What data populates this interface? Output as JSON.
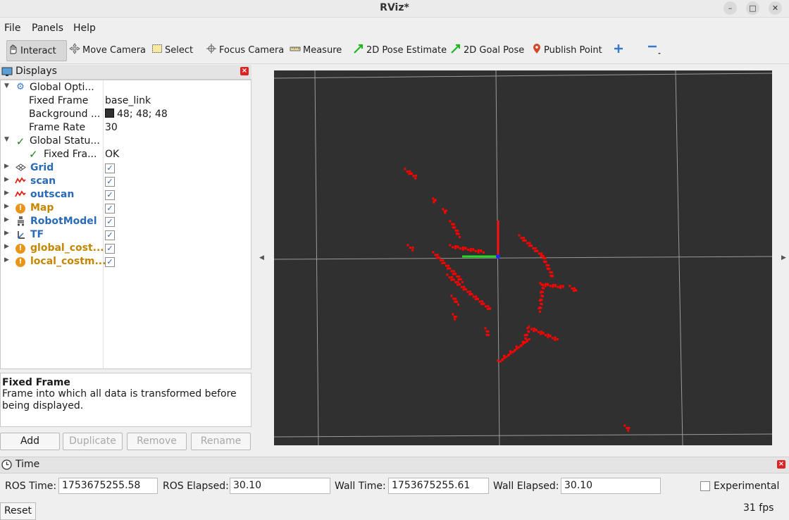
{
  "window": {
    "title": "RViz*"
  },
  "menu": {
    "file": "File",
    "panels": "Panels",
    "help": "Help"
  },
  "toolbar": {
    "interact": "Interact",
    "move_camera": "Move Camera",
    "select": "Select",
    "focus_camera": "Focus Camera",
    "measure": "Measure",
    "pose_estimate": "2D Pose Estimate",
    "goal_pose": "2D Goal Pose",
    "publish_point": "Publish Point"
  },
  "displays": {
    "title": "Displays",
    "global_options": {
      "label": "Global Opti...",
      "fixed_frame_label": "Fixed Frame",
      "fixed_frame_value": "base_link",
      "background_label": "Background ...",
      "background_value": "48; 48; 48",
      "frame_rate_label": "Frame Rate",
      "frame_rate_value": "30"
    },
    "global_status": {
      "label": "Global Statu...",
      "fixed_frame_label": "Fixed Fra...",
      "fixed_frame_value": "OK"
    },
    "items": [
      {
        "label": "Grid",
        "status": "ok",
        "checked": true
      },
      {
        "label": "scan",
        "status": "ok",
        "checked": true
      },
      {
        "label": "outscan",
        "status": "ok",
        "checked": true
      },
      {
        "label": "Map",
        "status": "warn",
        "checked": true
      },
      {
        "label": "RobotModel",
        "status": "ok",
        "checked": true
      },
      {
        "label": "TF",
        "status": "ok",
        "checked": true
      },
      {
        "label": "global_cost...",
        "status": "warn",
        "checked": true
      },
      {
        "label": "local_costm...",
        "status": "warn",
        "checked": true
      }
    ]
  },
  "description": {
    "title": "Fixed Frame",
    "text": "Frame into which all data is transformed before being displayed."
  },
  "panel_buttons": {
    "add": "Add",
    "duplicate": "Duplicate",
    "remove": "Remove",
    "rename": "Rename"
  },
  "time": {
    "title": "Time",
    "ros_time_label": "ROS Time:",
    "ros_time": "1753675255.58",
    "ros_elapsed_label": "ROS Elapsed:",
    "ros_elapsed": "30.10",
    "wall_time_label": "Wall Time:",
    "wall_time": "1753675255.61",
    "wall_elapsed_label": "Wall Elapsed:",
    "wall_elapsed": "30.10",
    "experimental_label": "Experimental",
    "reset": "Reset",
    "fps": "31 fps"
  },
  "colors": {
    "background": "#303030",
    "scan": "#ff0000",
    "grid": "#a0a0a0",
    "axis_x": "#ff0000",
    "axis_y": "#00cc00",
    "accent_blue": "#2a6bb8",
    "warn_orange": "#c68600"
  }
}
